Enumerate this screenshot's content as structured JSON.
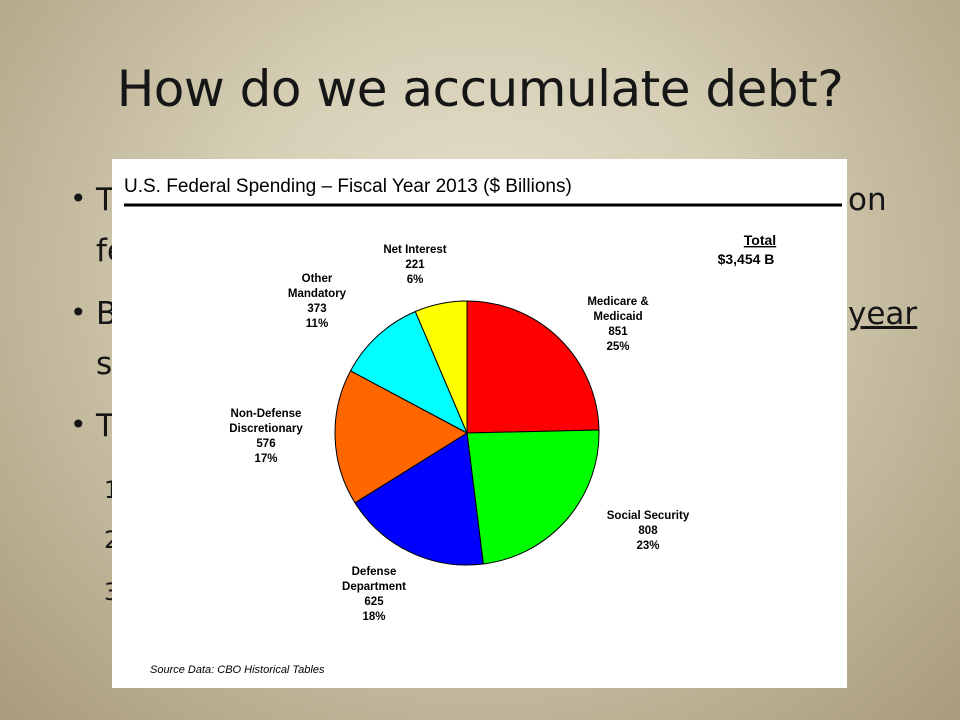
{
  "slide": {
    "title": "How do we accumulate debt?",
    "bullets": [
      {
        "lead": "T",
        "trail": "on",
        "second_line": "fe"
      },
      {
        "lead": "B",
        "trail": "year",
        "second_line": "s"
      },
      {
        "lead": "T"
      }
    ],
    "sub_numbers": [
      "1",
      "2",
      "3"
    ]
  },
  "chart_data": {
    "type": "pie",
    "title": "U.S. Federal Spending – Fiscal Year 2013 ($ Billions)",
    "total_label": "Total",
    "total_value": "$3,454 B",
    "source": "Source Data: CBO Historical Tables",
    "slices": [
      {
        "name": "Medicare & Medicaid",
        "label_lines": [
          "Medicare &",
          "Medicaid"
        ],
        "value": 851,
        "percent": "25%",
        "color": "#ff0000"
      },
      {
        "name": "Social Security",
        "label_lines": [
          "Social Security"
        ],
        "value": 808,
        "percent": "23%",
        "color": "#00ff00"
      },
      {
        "name": "Defense Department",
        "label_lines": [
          "Defense",
          "Department"
        ],
        "value": 625,
        "percent": "18%",
        "color": "#0000ff"
      },
      {
        "name": "Non-Defense Discretionary",
        "label_lines": [
          "Non-Defense",
          "Discretionary"
        ],
        "value": 576,
        "percent": "17%",
        "color": "#ff6600"
      },
      {
        "name": "Other Mandatory",
        "label_lines": [
          "Other",
          "Mandatory"
        ],
        "value": 373,
        "percent": "11%",
        "color": "#00ffff"
      },
      {
        "name": "Net Interest",
        "label_lines": [
          "Net Interest"
        ],
        "value": 221,
        "percent": "6%",
        "color": "#ffff00"
      }
    ]
  }
}
